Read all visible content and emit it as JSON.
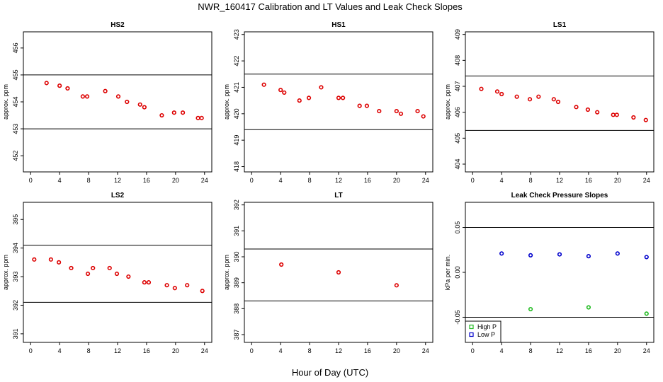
{
  "figure": {
    "title": "NWR_160417  Calibration and LT Values and Leak Check Slopes",
    "xlabel": "Hour of Day (UTC)"
  },
  "chart_data": [
    {
      "type": "scatter",
      "title": "HS2",
      "ylabel": "approx. ppm",
      "xlim": [
        -1,
        25
      ],
      "ylim": [
        451.4,
        456.6
      ],
      "xticks": [
        0,
        4,
        8,
        12,
        16,
        20,
        24
      ],
      "yticks": [
        452,
        453,
        454,
        455,
        456
      ],
      "hlines": [
        455,
        453
      ],
      "series": [
        {
          "name": "",
          "color": "#dd0000",
          "x": [
            2.2,
            4.0,
            5.1,
            7.2,
            7.8,
            10.3,
            12.1,
            13.3,
            15.1,
            15.7,
            18.1,
            19.8,
            21.0,
            23.1,
            23.6
          ],
          "y": [
            454.7,
            454.6,
            454.5,
            454.2,
            454.2,
            454.4,
            454.2,
            454.0,
            453.9,
            453.8,
            453.5,
            453.6,
            453.6,
            453.4,
            453.4
          ]
        }
      ]
    },
    {
      "type": "scatter",
      "title": "HS1",
      "ylabel": "approx. ppm",
      "xlim": [
        -1,
        25
      ],
      "ylim": [
        417.8,
        423.1
      ],
      "xticks": [
        0,
        4,
        8,
        12,
        16,
        20,
        24
      ],
      "yticks": [
        418,
        419,
        420,
        421,
        422,
        423
      ],
      "hlines": [
        421.5,
        419.4
      ],
      "series": [
        {
          "name": "",
          "color": "#dd0000",
          "x": [
            1.7,
            4.0,
            4.5,
            6.6,
            7.9,
            9.6,
            12.0,
            12.6,
            14.9,
            15.9,
            17.6,
            20.0,
            20.6,
            22.9,
            23.7
          ],
          "y": [
            421.1,
            420.9,
            420.8,
            420.5,
            420.6,
            421.0,
            420.6,
            420.6,
            420.3,
            420.3,
            420.1,
            420.1,
            420.0,
            420.1,
            419.9
          ]
        }
      ]
    },
    {
      "type": "scatter",
      "title": "LS1",
      "ylabel": "approx. ppm",
      "xlim": [
        -1,
        25
      ],
      "ylim": [
        403.7,
        409.1
      ],
      "xticks": [
        0,
        4,
        8,
        12,
        16,
        20,
        24
      ],
      "yticks": [
        404,
        405,
        406,
        407,
        408,
        409
      ],
      "hlines": [
        407.4,
        405.3
      ],
      "series": [
        {
          "name": "",
          "color": "#dd0000",
          "x": [
            1.2,
            3.4,
            4.0,
            6.1,
            7.9,
            9.1,
            11.2,
            11.8,
            14.3,
            15.9,
            17.2,
            19.4,
            19.9,
            22.2,
            23.9
          ],
          "y": [
            406.9,
            406.8,
            406.7,
            406.6,
            406.5,
            406.6,
            406.5,
            406.4,
            406.2,
            406.1,
            406.0,
            405.9,
            405.9,
            405.8,
            405.7
          ]
        }
      ]
    },
    {
      "type": "scatter",
      "title": "LS2",
      "ylabel": "approx. ppm",
      "xlim": [
        -1,
        25
      ],
      "ylim": [
        390.7,
        395.6
      ],
      "xticks": [
        0,
        4,
        8,
        12,
        16,
        20,
        24
      ],
      "yticks": [
        391,
        392,
        393,
        394,
        395
      ],
      "hlines": [
        394.1,
        392.1
      ],
      "series": [
        {
          "name": "",
          "color": "#dd0000",
          "x": [
            0.5,
            2.8,
            3.9,
            5.6,
            7.9,
            8.6,
            10.9,
            11.9,
            13.5,
            15.7,
            16.3,
            18.8,
            19.9,
            21.6,
            23.7
          ],
          "y": [
            393.6,
            393.6,
            393.5,
            393.3,
            393.1,
            393.3,
            393.3,
            393.1,
            393.0,
            392.8,
            392.8,
            392.7,
            392.6,
            392.7,
            392.5
          ]
        }
      ]
    },
    {
      "type": "scatter",
      "title": "LT",
      "ylabel": "approx. ppm",
      "xlim": [
        -1,
        25
      ],
      "ylim": [
        386.7,
        392.1
      ],
      "xticks": [
        0,
        4,
        8,
        12,
        16,
        20,
        24
      ],
      "yticks": [
        387,
        388,
        389,
        390,
        391,
        392
      ],
      "hlines": [
        390.3,
        388.3
      ],
      "series": [
        {
          "name": "",
          "color": "#dd0000",
          "x": [
            4.1,
            12.0,
            20.0
          ],
          "y": [
            389.7,
            389.4,
            388.9
          ]
        }
      ]
    },
    {
      "type": "scatter",
      "title": "Leak Check Pressure Slopes",
      "ylabel": "kPa per min.",
      "xlim": [
        -1,
        25
      ],
      "ylim": [
        -0.078,
        0.078
      ],
      "xticks": [
        0,
        4,
        8,
        12,
        16,
        20,
        24
      ],
      "yticks": [
        -0.05,
        0.0,
        0.05
      ],
      "ytick_labels": [
        "-0.05",
        "0.00",
        "0.05"
      ],
      "hlines": [
        0.05,
        -0.05
      ],
      "legend": "bottom-left",
      "series": [
        {
          "name": "High P",
          "color": "#22bb22",
          "x": [
            8.0,
            16.0,
            24.0
          ],
          "y": [
            -0.041,
            -0.039,
            -0.046
          ]
        },
        {
          "name": "Low P",
          "color": "#0000cc",
          "x": [
            4.0,
            8.0,
            12.0,
            16.0,
            20.0,
            24.0
          ],
          "y": [
            0.021,
            0.019,
            0.02,
            0.018,
            0.021,
            0.017
          ]
        }
      ]
    }
  ]
}
